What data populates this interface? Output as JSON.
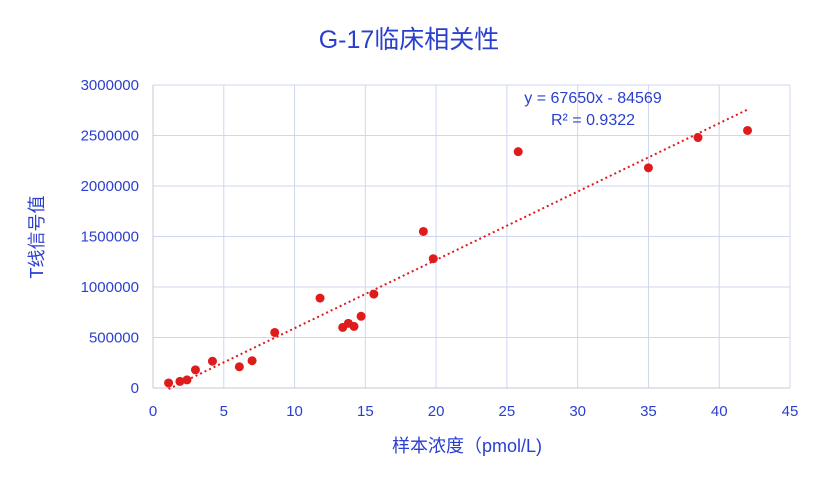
{
  "chart_data": {
    "type": "scatter",
    "title": "G-17临床相关性",
    "xlabel": "样本浓度（pmol/L)",
    "ylabel": "T线信号值",
    "xlim": [
      0,
      45
    ],
    "ylim": [
      0,
      3000000
    ],
    "x_ticks": [
      "0",
      "5",
      "10",
      "15",
      "20",
      "25",
      "30",
      "35",
      "40",
      "45"
    ],
    "y_ticks": [
      "0",
      "500000",
      "1000000",
      "1500000",
      "2000000",
      "2500000",
      "3000000"
    ],
    "grid": true,
    "legend": "none",
    "series": [
      {
        "points": [
          {
            "x": 1.1,
            "y": 50000
          },
          {
            "x": 1.9,
            "y": 65000
          },
          {
            "x": 2.4,
            "y": 80000
          },
          {
            "x": 3.0,
            "y": 180000
          },
          {
            "x": 4.2,
            "y": 265000
          },
          {
            "x": 6.1,
            "y": 210000
          },
          {
            "x": 7.0,
            "y": 270000
          },
          {
            "x": 8.6,
            "y": 550000
          },
          {
            "x": 11.8,
            "y": 890000
          },
          {
            "x": 13.4,
            "y": 600000
          },
          {
            "x": 13.8,
            "y": 640000
          },
          {
            "x": 14.2,
            "y": 610000
          },
          {
            "x": 14.7,
            "y": 710000
          },
          {
            "x": 15.6,
            "y": 930000
          },
          {
            "x": 19.1,
            "y": 1550000
          },
          {
            "x": 19.8,
            "y": 1280000
          },
          {
            "x": 25.8,
            "y": 2340000
          },
          {
            "x": 35.0,
            "y": 2180000
          },
          {
            "x": 38.5,
            "y": 2480000
          },
          {
            "x": 42.0,
            "y": 2550000
          }
        ]
      }
    ],
    "trendline": {
      "type": "linear",
      "slope": 67650,
      "intercept": -84569,
      "x_range": [
        1.1,
        42.0
      ],
      "equation": "y = 67650x - 84569",
      "r_squared": "R² = 0.9322"
    },
    "colors": {
      "text": "#2b3fcf",
      "points": "#e01b1b",
      "trend": "#e01b1b",
      "grid": "#cfd6f0"
    }
  }
}
